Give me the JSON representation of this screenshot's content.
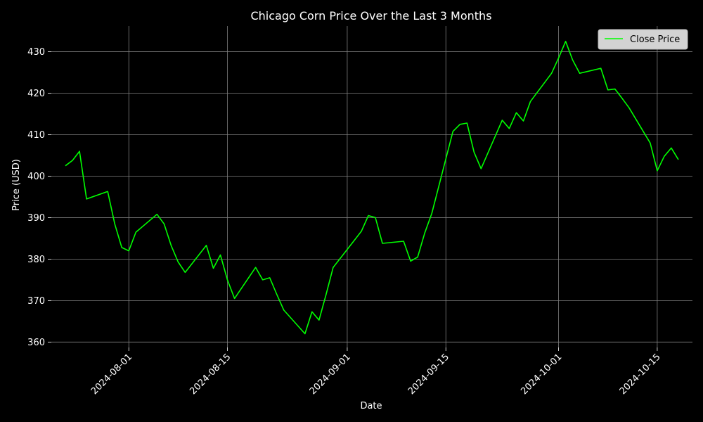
{
  "chart_data": {
    "type": "line",
    "title": "Chicago Corn Price Over the Last 3 Months",
    "xlabel": "Date",
    "ylabel": "Price (USD)",
    "xlim": [
      "2024-07-21",
      "2024-10-20"
    ],
    "ylim": [
      358.7,
      436.2
    ],
    "grid": true,
    "legend": "top-right",
    "colors": {
      "background": "#000000",
      "line": "#00ff00",
      "grid": "#808080",
      "text": "#ffffff",
      "legend_bg": "#d3d3d3"
    },
    "x_ticks": [
      "2024-08-01",
      "2024-08-15",
      "2024-09-01",
      "2024-09-15",
      "2024-10-01",
      "2024-10-15"
    ],
    "y_ticks": [
      360,
      370,
      380,
      390,
      400,
      410,
      420,
      430
    ],
    "series": [
      {
        "name": "Close Price",
        "x": [
          "2024-07-23",
          "2024-07-24",
          "2024-07-25",
          "2024-07-26",
          "2024-07-29",
          "2024-07-30",
          "2024-07-31",
          "2024-08-01",
          "2024-08-02",
          "2024-08-05",
          "2024-08-06",
          "2024-08-07",
          "2024-08-08",
          "2024-08-09",
          "2024-08-12",
          "2024-08-13",
          "2024-08-14",
          "2024-08-15",
          "2024-08-16",
          "2024-08-19",
          "2024-08-20",
          "2024-08-21",
          "2024-08-22",
          "2024-08-23",
          "2024-08-26",
          "2024-08-27",
          "2024-08-28",
          "2024-08-29",
          "2024-08-30",
          "2024-09-03",
          "2024-09-04",
          "2024-09-05",
          "2024-09-06",
          "2024-09-09",
          "2024-09-10",
          "2024-09-11",
          "2024-09-12",
          "2024-09-13",
          "2024-09-16",
          "2024-09-17",
          "2024-09-18",
          "2024-09-19",
          "2024-09-20",
          "2024-09-23",
          "2024-09-24",
          "2024-09-25",
          "2024-09-26",
          "2024-09-27",
          "2024-09-30",
          "2024-10-01",
          "2024-10-02",
          "2024-10-03",
          "2024-10-04",
          "2024-10-07",
          "2024-10-08",
          "2024-10-09",
          "2024-10-10",
          "2024-10-11",
          "2024-10-14",
          "2024-10-15",
          "2024-10-16",
          "2024-10-17",
          "2024-10-18"
        ],
        "values": [
          402.5,
          403.8,
          406.0,
          394.5,
          396.3,
          388.5,
          382.8,
          382.0,
          386.5,
          390.8,
          388.5,
          383.3,
          379.3,
          376.8,
          383.3,
          377.8,
          381.0,
          375.0,
          370.5,
          378.0,
          375.0,
          375.5,
          371.5,
          367.7,
          362.0,
          367.3,
          365.3,
          371.5,
          378.0,
          386.7,
          390.5,
          390.0,
          383.8,
          384.3,
          379.5,
          380.5,
          386.3,
          391.0,
          410.8,
          412.5,
          412.8,
          405.8,
          401.8,
          413.5,
          411.5,
          415.3,
          413.3,
          418.0,
          424.8,
          428.5,
          432.5,
          428.0,
          424.8,
          426.0,
          420.8,
          421.0,
          418.8,
          416.5,
          408.0,
          401.3,
          404.8,
          406.8,
          404.0
        ]
      }
    ]
  }
}
